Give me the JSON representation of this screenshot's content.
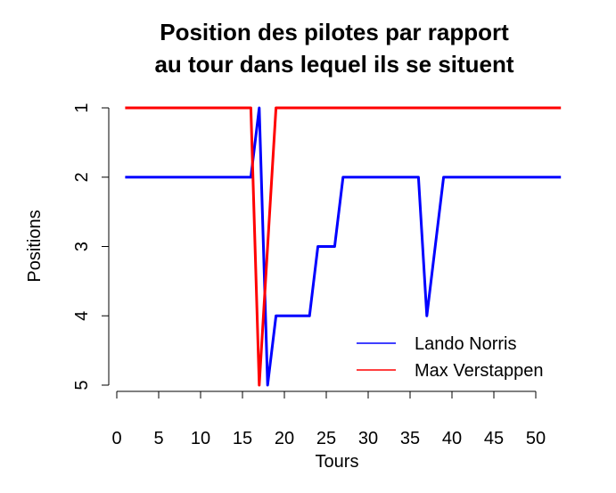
{
  "chart_data": {
    "type": "line",
    "title": [
      "Position des pilotes par rapport",
      "au tour dans lequel ils se situent"
    ],
    "xlabel": "Tours",
    "ylabel": "Positions",
    "xlim": [
      0,
      53
    ],
    "ylim": [
      5,
      1
    ],
    "x_ticks": [
      0,
      5,
      10,
      15,
      20,
      25,
      30,
      35,
      40,
      45,
      50
    ],
    "y_ticks": [
      1,
      2,
      3,
      4,
      5
    ],
    "legend_position": "bottom-right",
    "series": [
      {
        "name": "Lando Norris",
        "color": "#0000ff",
        "x": [
          1,
          16,
          17,
          18,
          19,
          23,
          24,
          26,
          27,
          36,
          37,
          38,
          39,
          53
        ],
        "y": [
          2,
          2,
          1,
          5,
          4,
          4,
          3,
          3,
          2,
          2,
          4,
          3,
          2,
          2
        ]
      },
      {
        "name": "Max Verstappen",
        "color": "#ff0000",
        "x": [
          1,
          16,
          17,
          18,
          19,
          53
        ],
        "y": [
          1,
          1,
          5,
          3,
          1,
          1
        ]
      }
    ]
  }
}
